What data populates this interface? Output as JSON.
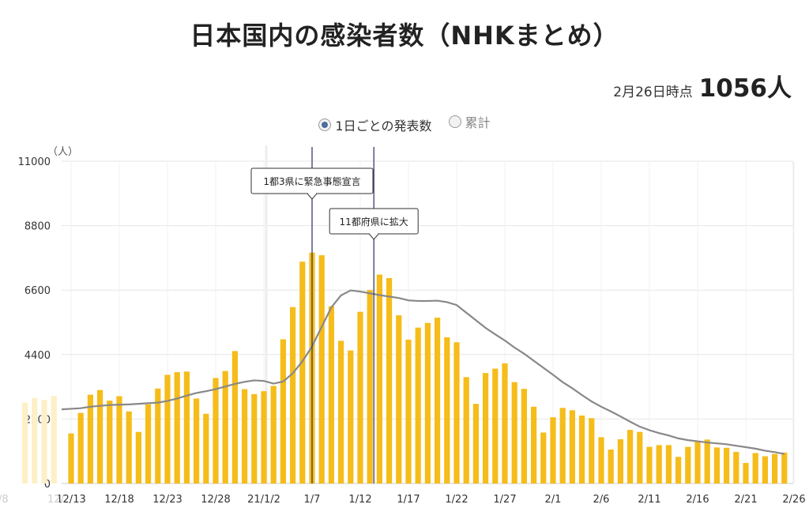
{
  "title": "日本国内の感染者数（NHKまとめ）",
  "as_of": {
    "label": "2月26日時点",
    "value": "1056人"
  },
  "toggle": {
    "options": [
      {
        "label": "1日ごとの発表数",
        "selected": true
      },
      {
        "label": "累計",
        "selected": false
      }
    ]
  },
  "colors": {
    "bar": "#f5bc1a",
    "bar_faded": "#fdf0c6",
    "line": "#888888",
    "event_line": "#2b2d5e",
    "grid": "#e6e6e6"
  },
  "chart_data": {
    "type": "bar",
    "unit_label": "（人）",
    "ylim": [
      0,
      11000
    ],
    "yticks": [
      0,
      2200,
      4400,
      6600,
      8800,
      11000
    ],
    "grid": true,
    "x_tick_labels": [
      "12/13",
      "12/18",
      "12/23",
      "12/28",
      "21/1/2",
      "1/7",
      "1/12",
      "1/17",
      "1/22",
      "1/27",
      "2/1",
      "2/6",
      "2/11",
      "2/16",
      "2/21",
      "2/26"
    ],
    "partial_left_labels": [
      "/8",
      "12/"
    ],
    "start_date": "12/13",
    "values": [
      1710,
      2410,
      3030,
      3190,
      2830,
      2980,
      2460,
      1760,
      2700,
      3240,
      3710,
      3800,
      3820,
      2900,
      2380,
      3600,
      3840,
      4520,
      3220,
      3050,
      3150,
      3330,
      4920,
      6020,
      7570,
      7880,
      7790,
      6050,
      4870,
      4540,
      5860,
      6600,
      7130,
      7010,
      5740,
      4910,
      5320,
      5480,
      5660,
      4990,
      4820,
      3630,
      2720,
      3770,
      3920,
      4100,
      3460,
      3230,
      2620,
      1740,
      2260,
      2580,
      2500,
      2320,
      2230,
      1580,
      1160,
      1510,
      1830,
      1760,
      1250,
      1310,
      1310,
      910,
      1250,
      1420,
      1500,
      1230,
      1220,
      1080,
      700,
      1040,
      930,
      1010,
      1056
    ],
    "partial_left_values": [
      2760,
      2920,
      2850,
      2990
    ],
    "seven_day_average": {
      "values": [
        2550,
        2570,
        2620,
        2650,
        2680,
        2690,
        2700,
        2720,
        2740,
        2760,
        2820,
        2900,
        3000,
        3090,
        3150,
        3220,
        3310,
        3400,
        3470,
        3520,
        3500,
        3410,
        3480,
        3760,
        4170,
        4680,
        5350,
        6010,
        6420,
        6590,
        6550,
        6490,
        6430,
        6380,
        6330,
        6250,
        6230,
        6230,
        6240,
        6190,
        6090,
        5830,
        5570,
        5310,
        5090,
        4880,
        4640,
        4430,
        4190,
        3950,
        3710,
        3460,
        3250,
        3020,
        2800,
        2620,
        2460,
        2290,
        2110,
        1940,
        1820,
        1720,
        1640,
        1540,
        1480,
        1440,
        1400,
        1370,
        1340,
        1290,
        1240,
        1190,
        1120,
        1070,
        1010
      ]
    },
    "events": [
      {
        "label": "1都3県に緊急事態宣言",
        "index": 25
      },
      {
        "label": "11都府県に拡大",
        "index": 31
      }
    ]
  }
}
